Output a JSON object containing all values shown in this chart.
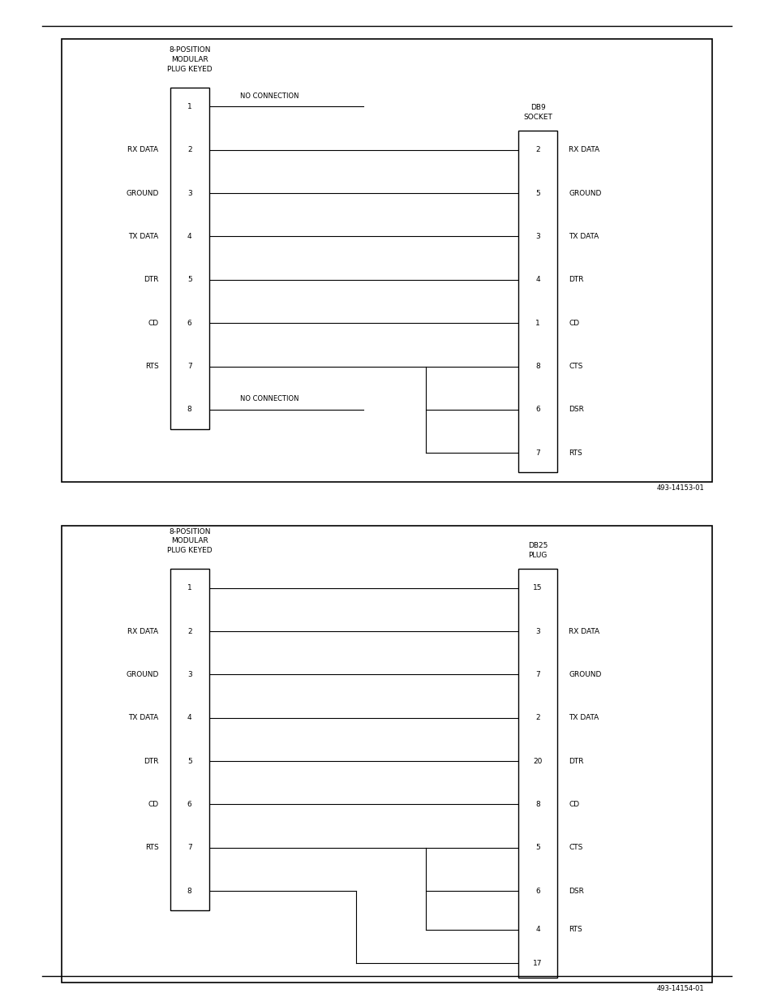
{
  "bg_color": "#ffffff",
  "diagram1": {
    "title_left": "8-POSITION\nMODULAR\nPLUG KEYED",
    "title_right": "DB9\nSOCKET",
    "left_pins": [
      "1",
      "2",
      "3",
      "4",
      "5",
      "6",
      "7",
      "8"
    ],
    "left_labels": [
      "",
      "RX DATA",
      "GROUND",
      "TX DATA",
      "DTR",
      "CD",
      "RTS",
      ""
    ],
    "right_pins": [
      "2",
      "5",
      "3",
      "4",
      "1",
      "8",
      "6",
      "7"
    ],
    "right_labels": [
      "RX DATA",
      "GROUND",
      "TX DATA",
      "DTR",
      "CD",
      "CTS",
      "DSR",
      "RTS"
    ],
    "ref": "493-14153-01"
  },
  "diagram2": {
    "title_left": "8-POSITION\nMODULAR\nPLUG KEYED",
    "title_right": "DB25\nPLUG",
    "left_pins": [
      "1",
      "2",
      "3",
      "4",
      "5",
      "6",
      "7",
      "8"
    ],
    "left_labels": [
      "",
      "RX DATA",
      "GROUND",
      "TX DATA",
      "DTR",
      "CD",
      "RTS",
      ""
    ],
    "right_pins": [
      "15",
      "3",
      "7",
      "2",
      "20",
      "8",
      "5",
      "6",
      "4",
      "17"
    ],
    "right_labels": [
      "",
      "RX DATA",
      "GROUND",
      "TX DATA",
      "DTR",
      "CD",
      "CTS",
      "DSR",
      "RTS",
      ""
    ],
    "ref": "493-14154-01"
  }
}
